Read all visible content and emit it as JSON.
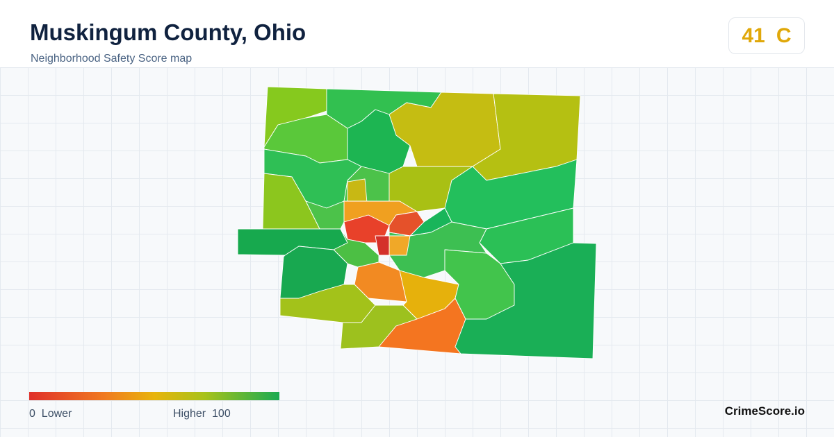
{
  "header": {
    "title": "Muskingum County, Ohio",
    "subtitle": "Neighborhood Safety Score map"
  },
  "score": {
    "value": "41",
    "grade": "C"
  },
  "legend": {
    "min": "0",
    "min_label": "Lower",
    "max_label": "Higher",
    "max": "100"
  },
  "brand": "CrimeScore.io"
}
